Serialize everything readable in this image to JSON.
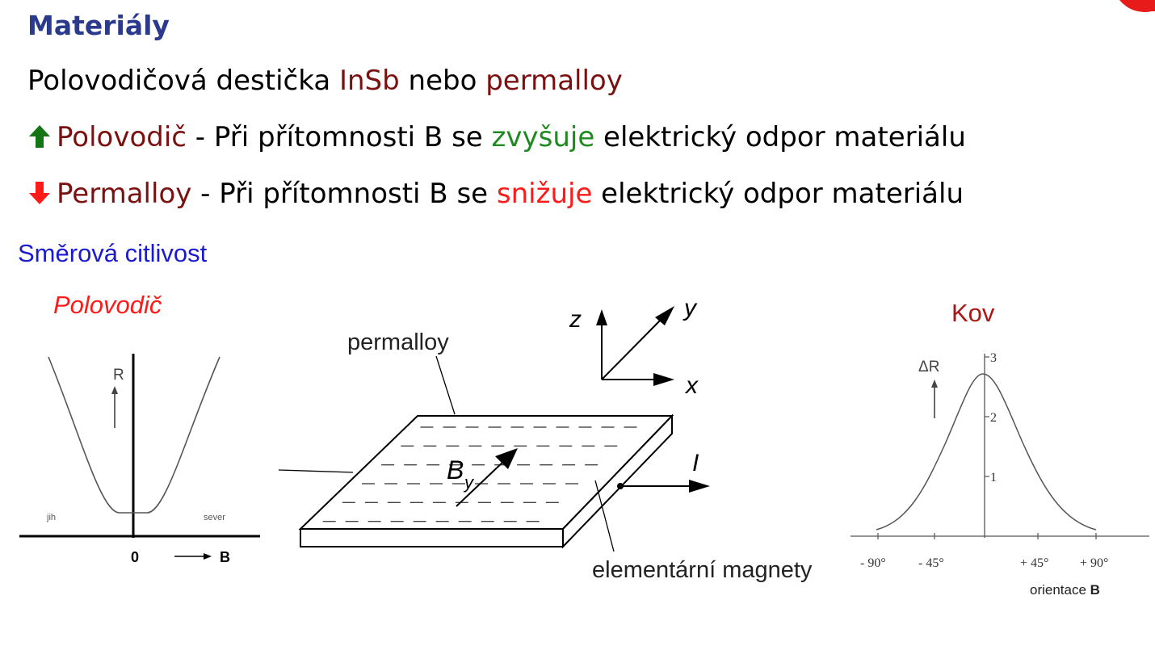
{
  "title": "Materiály",
  "line1": {
    "a": "Polovodičová destička ",
    "b": "InSb",
    "c": " nebo ",
    "d": "permalloy"
  },
  "line2": {
    "a": "Polovodič",
    "b": " - Při přítomnosti B se ",
    "c": "zvyšuje",
    "d": " elektrický odpor materiálu"
  },
  "line3": {
    "a": "Permalloy",
    "b": " - Při přítomnosti B se ",
    "c": "snižuje",
    "d": " elektrický odpor materiálu"
  },
  "subtitle": "Směrová citlivost",
  "left_label": "Polovodič",
  "right_label": "Kov",
  "left_graph": {
    "y_axis": "R",
    "zero": "0",
    "x_axis": "B",
    "left": "jih",
    "right": "sever"
  },
  "middle": {
    "top_label": "permalloy",
    "bottom_label": "elementární magnety",
    "field": "B",
    "field_sub": "y",
    "current": "I",
    "ax_z": "z",
    "ax_y": "y",
    "ax_x": "x"
  },
  "right_graph": {
    "y_axis": "ΔR",
    "y_ticks": [
      "3",
      "2",
      "1"
    ],
    "x_ticks": [
      "- 90°",
      "- 45°",
      "+ 45°",
      "+ 90°"
    ],
    "x_label": "orientace ",
    "x_label_b": "B"
  },
  "colors": {
    "title": "#2b3a8c",
    "dark_red": "#7a1010",
    "green": "#1f8a1f",
    "red": "#ff1a1a",
    "blue": "#1a1ad0"
  },
  "icons": {
    "up": "green-up-arrow-icon",
    "down": "red-down-arrow-icon"
  }
}
